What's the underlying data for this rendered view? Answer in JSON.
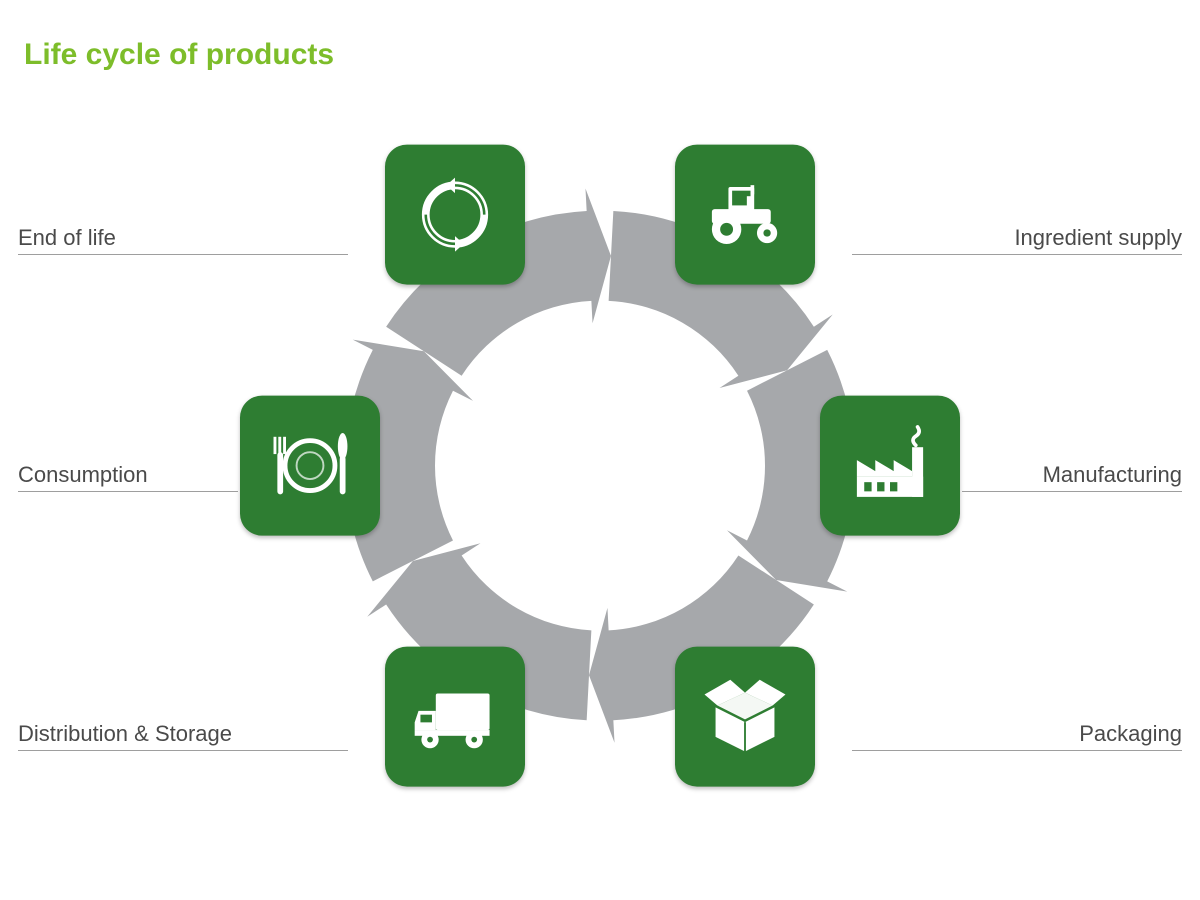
{
  "title": "Life cycle of products",
  "title_color": "#7dbd2a",
  "title_fontsize": 30,
  "background_color": "#ffffff",
  "ring": {
    "outer_radius": 255,
    "inner_radius": 165,
    "segments": 6,
    "gap_deg": 6,
    "fill": "#a6a8ab",
    "arrow_gap_fill": "#ffffff"
  },
  "nodes": {
    "size": 140,
    "radius_from_center": 290,
    "corner_radius": 22,
    "bg": "#2e7d32",
    "icon_color": "#ffffff",
    "items": [
      {
        "key": "ingredient_supply",
        "angle_deg": -60,
        "icon": "tractor",
        "label": "Ingredient supply",
        "side": "right",
        "label_y_offset": -223
      },
      {
        "key": "manufacturing",
        "angle_deg": 0,
        "icon": "factory",
        "label": "Manufacturing",
        "side": "right",
        "label_y_offset": 14
      },
      {
        "key": "packaging",
        "angle_deg": 60,
        "icon": "box",
        "label": "Packaging",
        "side": "right",
        "label_y_offset": 273
      },
      {
        "key": "distribution",
        "angle_deg": 120,
        "icon": "truck",
        "label": "Distribution & Storage",
        "side": "left",
        "label_y_offset": 273
      },
      {
        "key": "consumption",
        "angle_deg": 180,
        "icon": "plate",
        "label": "Consumption",
        "side": "left",
        "label_y_offset": 14
      },
      {
        "key": "end_of_life",
        "angle_deg": -120,
        "icon": "recycle",
        "label": "End of life",
        "side": "left",
        "label_y_offset": -223
      }
    ]
  },
  "label_style": {
    "fontsize": 22,
    "color": "#4a4a4a",
    "underline_color": "#9e9e9e"
  }
}
